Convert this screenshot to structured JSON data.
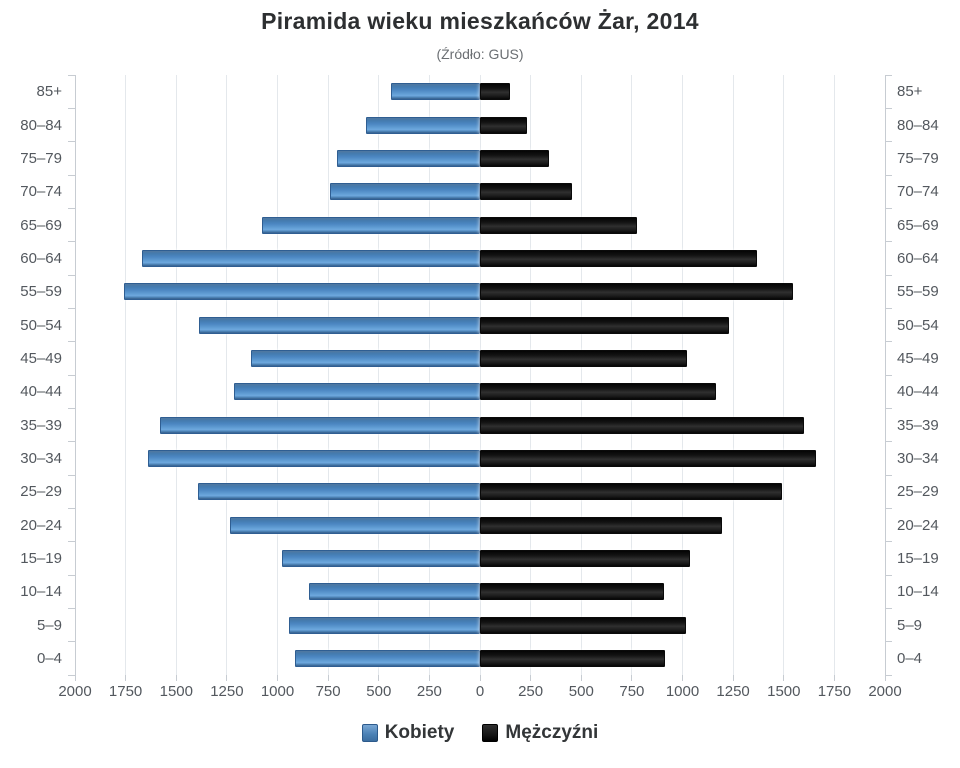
{
  "header": {
    "title": "Piramida wieku mieszkańców Żar, 2014",
    "subtitle": "(Źródło: GUS)"
  },
  "chart_data": {
    "type": "bar",
    "variant": "population-pyramid",
    "orientation": "horizontal",
    "title": "Piramida wieku mieszkańców Żar, 2014",
    "subtitle": "(Źródło: GUS)",
    "grid": true,
    "legend_position": "bottom",
    "y_axis": {
      "labels_both_sides": true,
      "categories_top_to_bottom": [
        "85+",
        "80–84",
        "75–79",
        "70–74",
        "65–69",
        "60–64",
        "55–59",
        "50–54",
        "45–49",
        "40–44",
        "35–39",
        "30–34",
        "25–29",
        "20–24",
        "15–19",
        "10–14",
        "5–9",
        "0–4"
      ]
    },
    "x_axis": {
      "min": -2000,
      "max": 2000,
      "tick_step": 250,
      "tick_labels": [
        "2000",
        "1750",
        "1500",
        "1250",
        "1000",
        "750",
        "500",
        "250",
        "0",
        "250",
        "500",
        "750",
        "1000",
        "1250",
        "1500",
        "1750",
        "2000"
      ]
    },
    "categories": [
      "85+",
      "80–84",
      "75–79",
      "70–74",
      "65–69",
      "60–64",
      "55–59",
      "50–54",
      "45–49",
      "40–44",
      "35–39",
      "30–34",
      "25–29",
      "20–24",
      "15–19",
      "10–14",
      "5–9",
      "0–4"
    ],
    "series": [
      {
        "name": "Kobiety",
        "color": "#4a80b4",
        "side": "left",
        "values": [
          440,
          565,
          705,
          740,
          1075,
          1670,
          1760,
          1390,
          1130,
          1215,
          1580,
          1640,
          1395,
          1235,
          980,
          845,
          945,
          915
        ]
      },
      {
        "name": "Mężczyźni",
        "color": "#141414",
        "side": "right",
        "values": [
          150,
          230,
          340,
          455,
          775,
          1370,
          1545,
          1230,
          1020,
          1165,
          1600,
          1660,
          1490,
          1195,
          1035,
          910,
          1015,
          915
        ]
      }
    ]
  }
}
